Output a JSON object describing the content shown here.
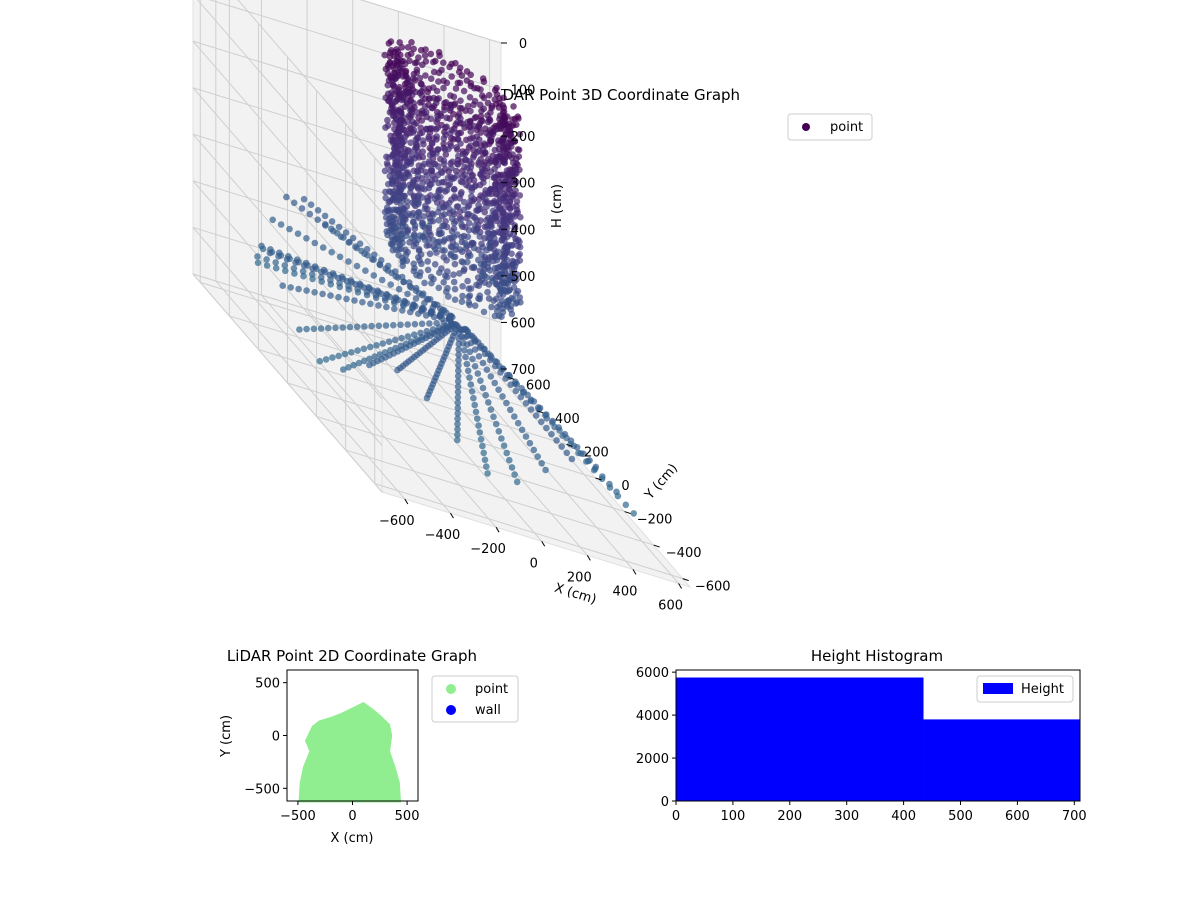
{
  "chart_data": [
    {
      "type": "scatter",
      "projection": "3d",
      "title": "LiDAR Point 3D Coordinate Graph",
      "xlabel": "X (cm)",
      "ylabel": "Y (cm)",
      "zlabel": "H (cm)",
      "xlim": [
        -700,
        650
      ],
      "ylim": [
        -650,
        650
      ],
      "zlim": [
        0,
        700
      ],
      "z_inverted": true,
      "xticks": [
        "−600",
        "−400",
        "−200",
        "0",
        "200",
        "400",
        "600"
      ],
      "yticks": [
        "−600",
        "−400",
        "−200",
        "0",
        "200",
        "400",
        "600"
      ],
      "zticks": [
        "0",
        "100",
        "200",
        "300",
        "400",
        "500",
        "600",
        "700"
      ],
      "grid": true,
      "colormap": "viridis",
      "legend": {
        "position": "top-right",
        "entries": [
          {
            "label": "point",
            "color": "#440154"
          }
        ]
      },
      "series": [
        {
          "name": "point",
          "description_of_shape": "dense cylindrical cluster near the top (H 0–300) plus radial fan of rays spreading outward toward the floor",
          "cylinder": {
            "center_x": 150,
            "center_y": 200,
            "radius": 260,
            "h_range": [
              0,
              420
            ]
          },
          "rays": {
            "origin_x": 20,
            "origin_y": -50,
            "origin_h": 600,
            "count": 24,
            "h_range": [
              150,
              700
            ]
          }
        }
      ]
    },
    {
      "type": "scatter",
      "title": "LiDAR Point 2D Coordinate Graph",
      "xlabel": "X (cm)",
      "ylabel": "Y (cm)",
      "xlim": [
        -600,
        600
      ],
      "ylim": [
        -620,
        620
      ],
      "xticks": [
        -500,
        0,
        500
      ],
      "yticks": [
        -500,
        0,
        500
      ],
      "legend": {
        "position": "outside-right",
        "entries": [
          {
            "label": "point",
            "color": "#90ee90"
          },
          {
            "label": "wall",
            "color": "#0000ff"
          }
        ]
      },
      "series": [
        {
          "name": "point",
          "color": "#90ee90",
          "outline_xy": [
            [
              -480,
              -620
            ],
            [
              -470,
              -450
            ],
            [
              -440,
              -300
            ],
            [
              -380,
              -150
            ],
            [
              -420,
              -50
            ],
            [
              -360,
              80
            ],
            [
              -300,
              130
            ],
            [
              -200,
              160
            ],
            [
              -100,
              200
            ],
            [
              0,
              250
            ],
            [
              100,
              300
            ],
            [
              180,
              240
            ],
            [
              250,
              180
            ],
            [
              330,
              100
            ],
            [
              350,
              0
            ],
            [
              330,
              -150
            ],
            [
              380,
              -300
            ],
            [
              420,
              -450
            ],
            [
              430,
              -620
            ]
          ]
        },
        {
          "name": "wall",
          "color": "#0000ff",
          "points": []
        }
      ]
    },
    {
      "type": "bar",
      "title": "Height Histogram",
      "xlim": [
        0,
        710
      ],
      "ylim": [
        0,
        6100
      ],
      "xticks": [
        0,
        100,
        200,
        300,
        400,
        500,
        600,
        700
      ],
      "yticks": [
        0,
        2000,
        4000,
        6000
      ],
      "legend": {
        "position": "top-right",
        "entries": [
          {
            "label": "Height",
            "color": "#0000ff"
          }
        ]
      },
      "series": [
        {
          "name": "Height",
          "color": "#0000ff",
          "bins": [
            {
              "x0": 0,
              "x1": 435,
              "count": 5750
            },
            {
              "x0": 435,
              "x1": 710,
              "count": 3800
            }
          ]
        }
      ]
    }
  ]
}
